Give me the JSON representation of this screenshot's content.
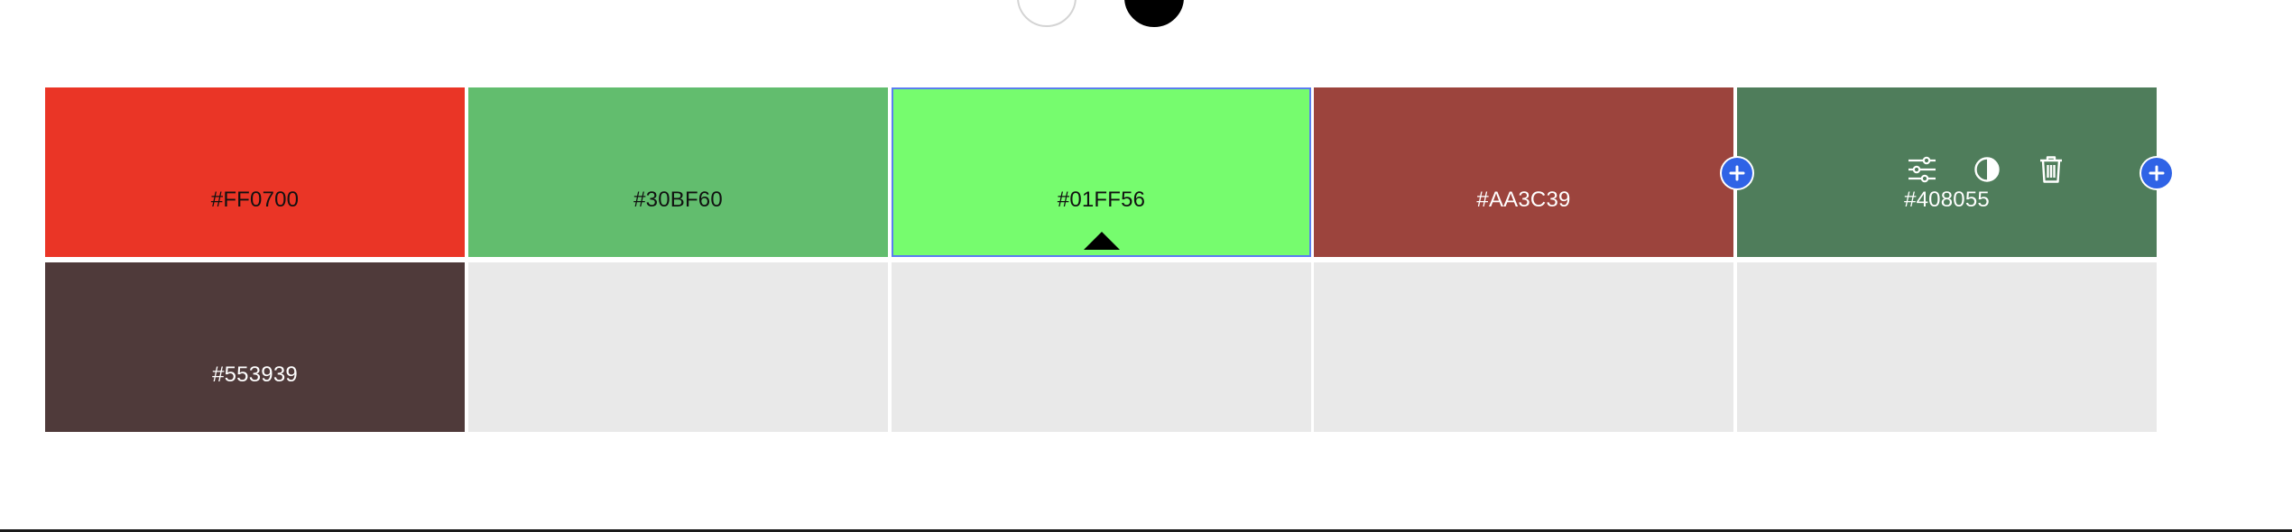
{
  "swatches": [
    {
      "hex": "#FF0700",
      "color": "#EA3526",
      "text_color": "#111111"
    },
    {
      "hex": "#30BF60",
      "color": "#62BD6E",
      "text_color": "#111111"
    },
    {
      "hex": "#01FF56",
      "color": "#76FC6E",
      "text_color": "#111111"
    },
    {
      "hex": "#AA3C39",
      "color": "#9C443D",
      "text_color": "#ffffff"
    },
    {
      "hex": "#408055",
      "color": "#4F7D5B",
      "text_color": "#ffffff"
    },
    {
      "hex": "#553939",
      "color": "#4F3A3A",
      "text_color": "#ffffff"
    }
  ],
  "selected_index": 2,
  "hovered_index": 4,
  "accent_color": "#2F63E6",
  "icons": {
    "mode_light": "circle-light-icon",
    "mode_dark": "circle-dark-icon",
    "adjust": "sliders-icon",
    "contrast": "contrast-icon",
    "delete": "trash-icon",
    "add": "plus-icon",
    "selected_marker": "caret-up-icon"
  }
}
